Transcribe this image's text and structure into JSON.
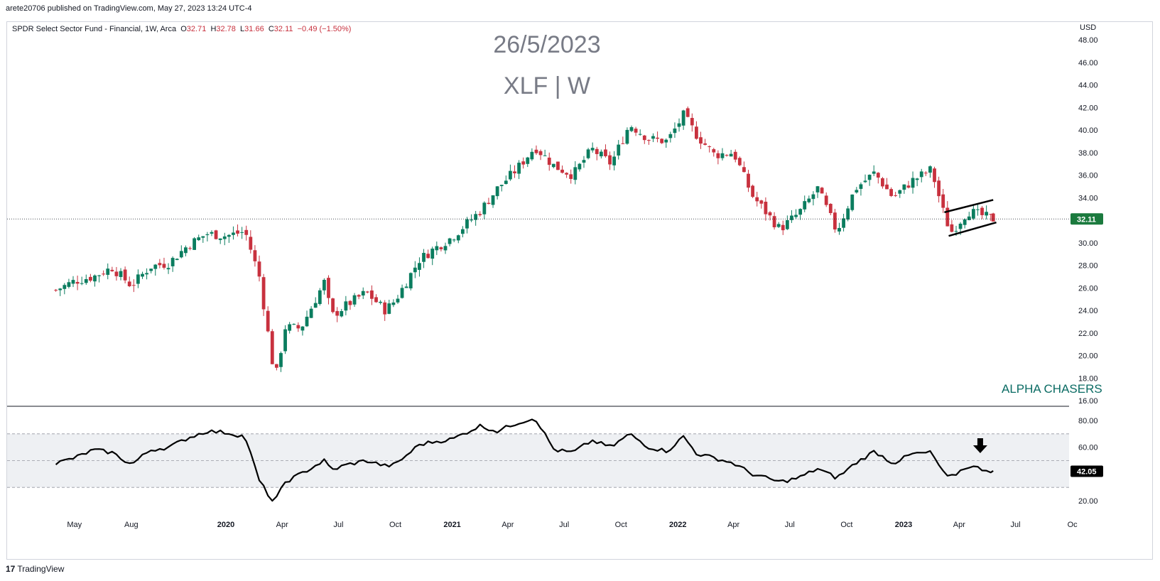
{
  "publisher_line": "arete20706 published on TradingView.com, May 27, 2023 13:24 UTC-4",
  "legend": {
    "name": "SPDR Select Sector Fund - Financial, 1W, Arca",
    "o_label": "O",
    "o": "32.71",
    "h_label": "H",
    "h": "32.78",
    "l_label": "L",
    "l": "31.66",
    "c_label": "C",
    "c": "32.11",
    "change": "−0.49 (−1.50%)"
  },
  "overlay": {
    "date": "26/5/2023",
    "symbol": "XLF | W",
    "watermark": "ALPHA CHASERS"
  },
  "currency": "USD",
  "footer_brand": "TradingView",
  "colors": {
    "up": "#0b7d5f",
    "down": "#c8313e",
    "rsi_band": "#eef0f3",
    "price_label_bg": "#1b7a3e"
  },
  "chart_data": [
    {
      "type": "candlestick",
      "title": "SPDR Select Sector Fund - Financial, 1W, Arca",
      "last_price": "32.11",
      "ylim": [
        16,
        48
      ],
      "y_ticks": [
        "48.00",
        "46.00",
        "44.00",
        "42.00",
        "40.00",
        "38.00",
        "36.00",
        "34.00",
        "32.00",
        "30.00",
        "28.00",
        "26.00",
        "24.00",
        "22.00",
        "20.00",
        "18.00",
        "16.00"
      ],
      "close_series": [
        [
          "2019-04-01",
          25.8
        ],
        [
          "2019-05-01",
          26.6
        ],
        [
          "2019-06-01",
          27.0
        ],
        [
          "2019-07-01",
          27.8
        ],
        [
          "2019-08-01",
          26.2
        ],
        [
          "2019-09-01",
          27.9
        ],
        [
          "2019-10-01",
          28.2
        ],
        [
          "2019-11-01",
          29.8
        ],
        [
          "2019-12-01",
          30.8
        ],
        [
          "2020-01-01",
          30.6
        ],
        [
          "2020-02-01",
          31.0
        ],
        [
          "2020-02-24",
          27.0
        ],
        [
          "2020-03-16",
          19.5
        ],
        [
          "2020-03-23",
          18.5
        ],
        [
          "2020-04-06",
          22.5
        ],
        [
          "2020-05-01",
          22.4
        ],
        [
          "2020-06-08",
          26.5
        ],
        [
          "2020-06-20",
          23.5
        ],
        [
          "2020-07-15",
          24.5
        ],
        [
          "2020-08-15",
          25.6
        ],
        [
          "2020-09-15",
          24.0
        ],
        [
          "2020-10-01",
          24.9
        ],
        [
          "2020-11-09",
          28.5
        ],
        [
          "2020-12-01",
          29.4
        ],
        [
          "2021-01-01",
          30.5
        ],
        [
          "2021-02-15",
          32.8
        ],
        [
          "2021-03-15",
          34.8
        ],
        [
          "2021-04-15",
          36.5
        ],
        [
          "2021-05-15",
          38.5
        ],
        [
          "2021-06-15",
          36.8
        ],
        [
          "2021-07-15",
          36.0
        ],
        [
          "2021-08-15",
          38.3
        ],
        [
          "2021-09-15",
          37.0
        ],
        [
          "2021-10-15",
          40.5
        ],
        [
          "2021-11-15",
          39.2
        ],
        [
          "2021-12-15",
          39.0
        ],
        [
          "2022-01-10",
          41.3
        ],
        [
          "2022-02-01",
          39.5
        ],
        [
          "2022-03-01",
          37.8
        ],
        [
          "2022-04-01",
          38.0
        ],
        [
          "2022-05-01",
          34.2
        ],
        [
          "2022-06-15",
          31.2
        ],
        [
          "2022-07-15",
          32.6
        ],
        [
          "2022-08-15",
          34.8
        ],
        [
          "2022-09-15",
          31.0
        ],
        [
          "2022-10-15",
          34.8
        ],
        [
          "2022-11-15",
          36.2
        ],
        [
          "2022-12-15",
          34.0
        ],
        [
          "2023-01-15",
          35.5
        ],
        [
          "2023-02-15",
          36.5
        ],
        [
          "2023-03-10",
          32.0
        ],
        [
          "2023-03-20",
          31.0
        ],
        [
          "2023-04-15",
          32.8
        ],
        [
          "2023-05-26",
          32.11
        ]
      ],
      "annotations": [
        "bear flag trendlines on latest weeks"
      ]
    },
    {
      "type": "line",
      "title": "RSI",
      "last_value": "42.05",
      "ylim": [
        10,
        90
      ],
      "y_ticks": [
        "80.00",
        "60.00",
        "20.00"
      ],
      "band": [
        30,
        70
      ],
      "midline": 50,
      "series": [
        [
          "2019-04-01",
          48
        ],
        [
          "2019-05-01",
          52
        ],
        [
          "2019-06-01",
          58
        ],
        [
          "2019-07-01",
          56
        ],
        [
          "2019-08-01",
          47
        ],
        [
          "2019-09-01",
          58
        ],
        [
          "2019-10-01",
          60
        ],
        [
          "2019-11-01",
          67
        ],
        [
          "2019-12-01",
          72
        ],
        [
          "2020-01-01",
          71
        ],
        [
          "2020-02-01",
          68
        ],
        [
          "2020-02-24",
          35
        ],
        [
          "2020-03-16",
          20
        ],
        [
          "2020-03-23",
          22
        ],
        [
          "2020-04-06",
          34
        ],
        [
          "2020-05-01",
          40
        ],
        [
          "2020-06-08",
          50
        ],
        [
          "2020-06-20",
          43
        ],
        [
          "2020-07-15",
          47
        ],
        [
          "2020-08-15",
          50
        ],
        [
          "2020-09-15",
          46
        ],
        [
          "2020-10-01",
          47
        ],
        [
          "2020-11-09",
          62
        ],
        [
          "2020-12-01",
          64
        ],
        [
          "2021-01-01",
          66
        ],
        [
          "2021-02-15",
          76
        ],
        [
          "2021-03-15",
          72
        ],
        [
          "2021-04-15",
          78
        ],
        [
          "2021-05-15",
          82
        ],
        [
          "2021-06-15",
          58
        ],
        [
          "2021-07-15",
          56
        ],
        [
          "2021-08-15",
          65
        ],
        [
          "2021-09-15",
          60
        ],
        [
          "2021-10-15",
          70
        ],
        [
          "2021-11-15",
          60
        ],
        [
          "2021-12-15",
          57
        ],
        [
          "2022-01-10",
          68
        ],
        [
          "2022-02-01",
          55
        ],
        [
          "2022-03-01",
          52
        ],
        [
          "2022-04-01",
          48
        ],
        [
          "2022-05-01",
          40
        ],
        [
          "2022-06-15",
          34
        ],
        [
          "2022-07-15",
          37
        ],
        [
          "2022-08-15",
          44
        ],
        [
          "2022-09-15",
          37
        ],
        [
          "2022-10-15",
          48
        ],
        [
          "2022-11-15",
          57
        ],
        [
          "2022-12-15",
          48
        ],
        [
          "2023-01-15",
          55
        ],
        [
          "2023-02-15",
          56
        ],
        [
          "2023-03-10",
          38
        ],
        [
          "2023-03-20",
          38
        ],
        [
          "2023-04-15",
          46
        ],
        [
          "2023-05-26",
          42.05
        ]
      ],
      "annotations": [
        "down arrow above RSI near May 2023"
      ]
    }
  ],
  "x_axis": {
    "tick_labels": [
      "May",
      "Aug",
      "2020",
      "Apr",
      "Jul",
      "Oct",
      "2021",
      "Apr",
      "Jul",
      "Oct",
      "2022",
      "Apr",
      "Jul",
      "Oct",
      "2023",
      "Apr",
      "Jul",
      "Oc"
    ],
    "tick_dates": [
      "2019-05-01",
      "2019-08-01",
      "2020-01-01",
      "2020-04-01",
      "2020-07-01",
      "2020-10-01",
      "2021-01-01",
      "2021-04-01",
      "2021-07-01",
      "2021-10-01",
      "2022-01-01",
      "2022-04-01",
      "2022-07-01",
      "2022-10-01",
      "2023-01-01",
      "2023-04-01",
      "2023-07-01",
      "2023-10-01"
    ]
  }
}
